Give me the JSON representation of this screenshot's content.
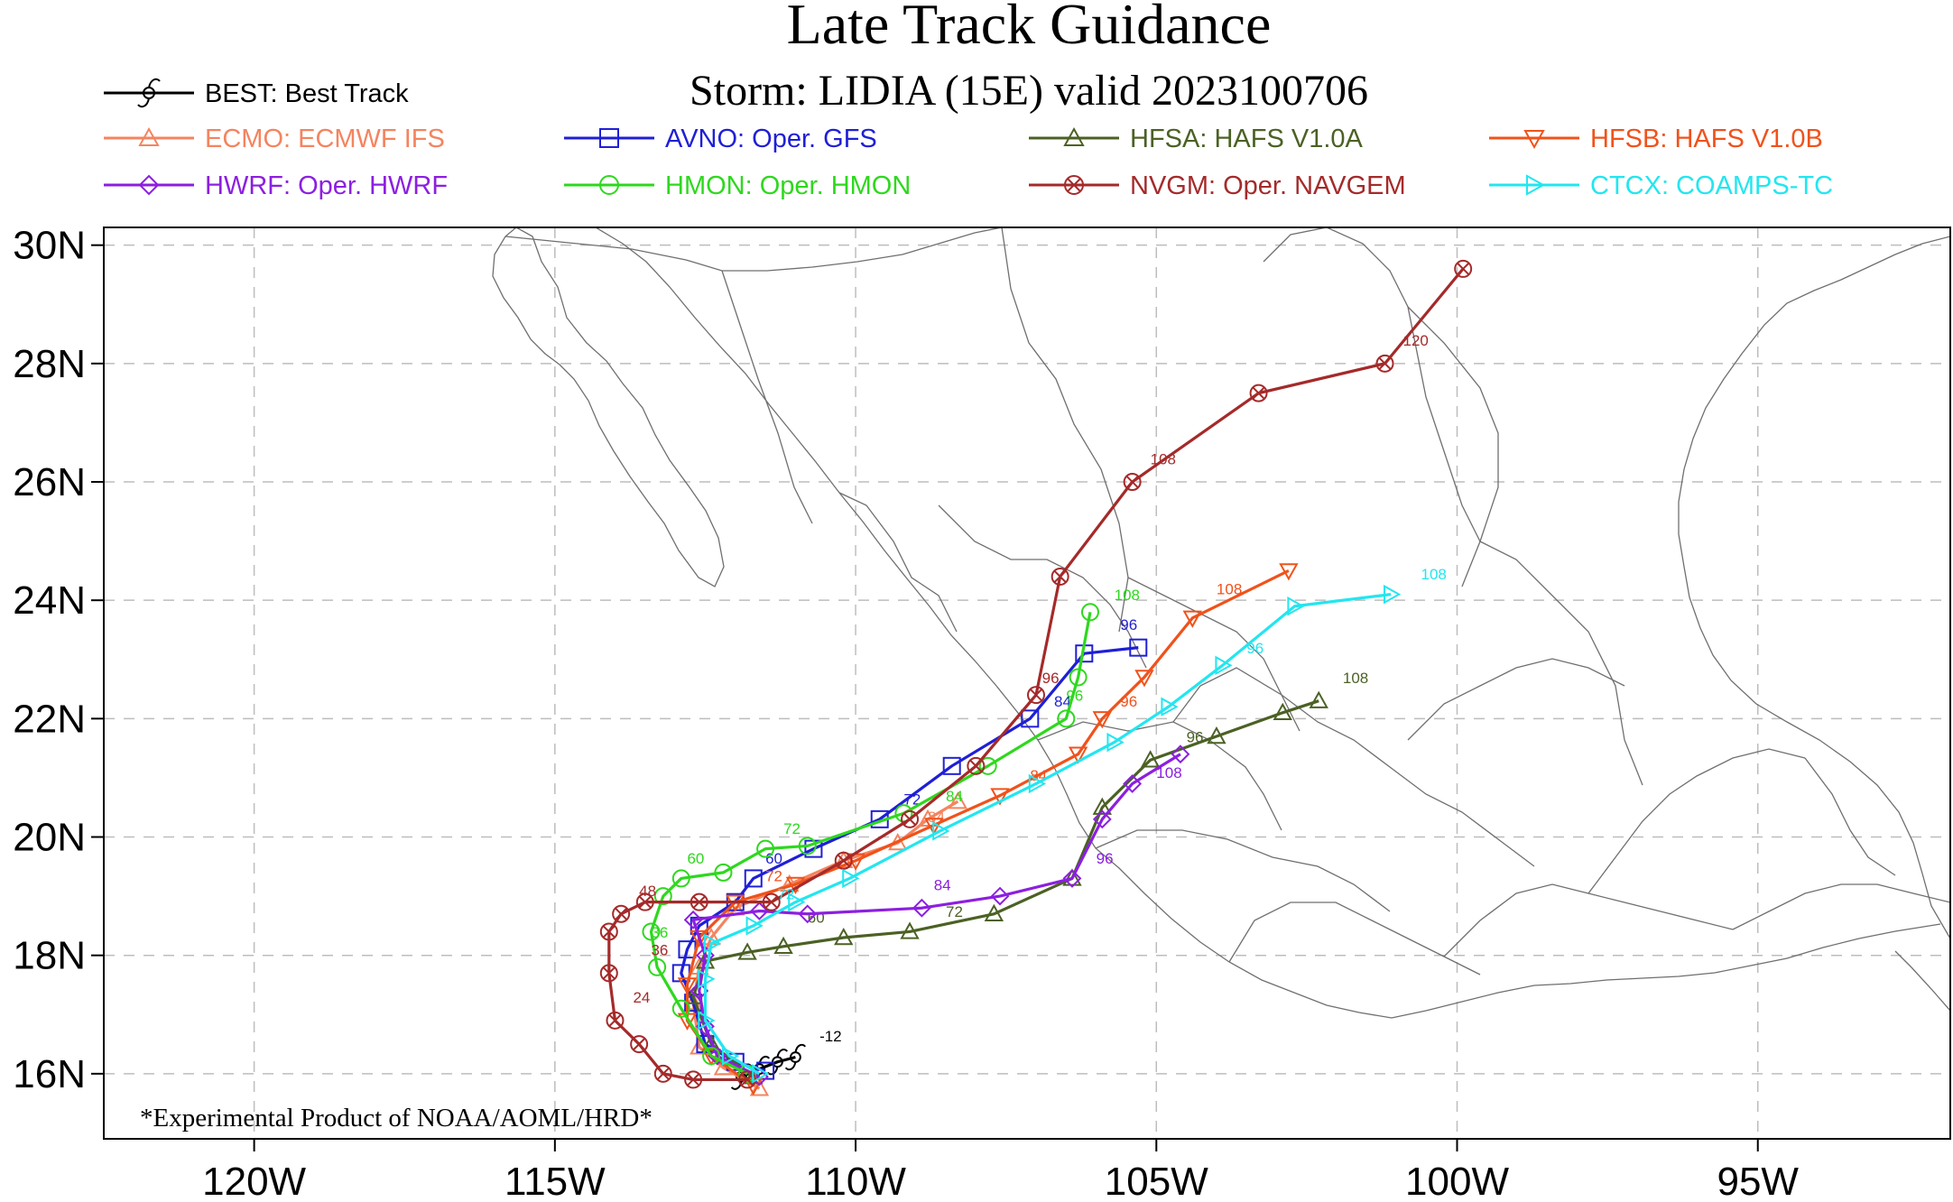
{
  "title": "Late Track Guidance",
  "subtitle": "Storm: LIDIA (15E) valid 2023100706",
  "footer": "*Experimental Product of NOAA/AOML/HRD*",
  "colors": {
    "grid": "#bdbdbd",
    "land": "#6f6f6f"
  },
  "chart_data": {
    "type": "line",
    "xlim": [
      -122.5,
      -91.8
    ],
    "ylim": [
      14.9,
      30.3
    ],
    "x_ticks": [
      {
        "value": -120,
        "label": "120W"
      },
      {
        "value": -115,
        "label": "115W"
      },
      {
        "value": -110,
        "label": "110W"
      },
      {
        "value": -105,
        "label": "105W"
      },
      {
        "value": -100,
        "label": "100W"
      },
      {
        "value": -95,
        "label": "95W"
      }
    ],
    "y_ticks": [
      {
        "value": 16,
        "label": "16N"
      },
      {
        "value": 18,
        "label": "18N"
      },
      {
        "value": 20,
        "label": "20N"
      },
      {
        "value": 22,
        "label": "22N"
      },
      {
        "value": 24,
        "label": "24N"
      },
      {
        "value": 26,
        "label": "26N"
      },
      {
        "value": 28,
        "label": "28N"
      },
      {
        "value": 30,
        "label": "30N"
      }
    ],
    "grid": true,
    "legend_placement": "top",
    "series": [
      {
        "name": "BEST: Best Track",
        "color": "#000000",
        "marker": "hurricane",
        "points": [
          [
            -111.0,
            16.28
          ],
          [
            -111.3,
            16.2
          ],
          [
            -111.6,
            16.08
          ],
          [
            -111.9,
            15.95
          ]
        ],
        "labels": [
          {
            "text": "-12",
            "x": -110.6,
            "y": 16.55
          }
        ]
      },
      {
        "name": "ECMO: ECMWF IFS",
        "color": "#f4845f",
        "marker": "triangle-up",
        "points": [
          [
            -111.6,
            15.75
          ],
          [
            -112.2,
            16.1
          ],
          [
            -112.6,
            16.45
          ],
          [
            -112.7,
            17.2
          ],
          [
            -112.6,
            17.8
          ],
          [
            -112.4,
            18.3
          ],
          [
            -112.0,
            18.8
          ],
          [
            -111.1,
            19.2
          ],
          [
            -110.2,
            19.6
          ],
          [
            -109.3,
            19.9
          ],
          [
            -108.8,
            20.3
          ],
          [
            -108.3,
            20.6
          ]
        ],
        "labels": [
          {
            "text": "84",
            "x": -108.8,
            "y": 20.25
          }
        ]
      },
      {
        "name": "AVNO: Oper. GFS",
        "color": "#1f1fd6",
        "marker": "square",
        "points": [
          [
            -111.5,
            16.05
          ],
          [
            -112.0,
            16.2
          ],
          [
            -112.5,
            16.5
          ],
          [
            -112.7,
            17.2
          ],
          [
            -112.9,
            17.7
          ],
          [
            -112.8,
            18.1
          ],
          [
            -112.6,
            18.5
          ],
          [
            -112.0,
            18.9
          ],
          [
            -111.7,
            19.3
          ],
          [
            -110.7,
            19.8
          ],
          [
            -109.6,
            20.3
          ],
          [
            -108.4,
            21.2
          ],
          [
            -107.1,
            22.0
          ],
          [
            -106.2,
            23.1
          ],
          [
            -105.3,
            23.2
          ]
        ],
        "labels": [
          {
            "text": "60",
            "x": -111.5,
            "y": 19.55
          },
          {
            "text": "72",
            "x": -109.2,
            "y": 20.55
          },
          {
            "text": "84",
            "x": -106.7,
            "y": 22.2
          },
          {
            "text": "96",
            "x": -105.6,
            "y": 23.5
          }
        ]
      },
      {
        "name": "HFSA: HAFS V1.0A",
        "color": "#4b6124",
        "marker": "triangle-up",
        "points": [
          [
            -111.7,
            15.95
          ],
          [
            -112.4,
            16.5
          ],
          [
            -112.7,
            17.3
          ],
          [
            -112.5,
            17.9
          ],
          [
            -111.8,
            18.05
          ],
          [
            -111.2,
            18.15
          ],
          [
            -110.2,
            18.3
          ],
          [
            -109.1,
            18.4
          ],
          [
            -107.7,
            18.7
          ],
          [
            -106.4,
            19.3
          ],
          [
            -105.9,
            20.5
          ],
          [
            -105.1,
            21.3
          ],
          [
            -104.0,
            21.7
          ],
          [
            -102.9,
            22.1
          ],
          [
            -102.3,
            22.3
          ]
        ],
        "labels": [
          {
            "text": "60",
            "x": -110.8,
            "y": 18.55
          },
          {
            "text": "72",
            "x": -108.5,
            "y": 18.65
          },
          {
            "text": "96",
            "x": -104.5,
            "y": 21.6
          },
          {
            "text": "108",
            "x": -101.9,
            "y": 22.6
          }
        ]
      },
      {
        "name": "HFSB: HAFS V1.0B",
        "color": "#f0521b",
        "marker": "triangle-down",
        "points": [
          [
            -111.7,
            15.8
          ],
          [
            -112.4,
            16.3
          ],
          [
            -112.8,
            16.9
          ],
          [
            -112.8,
            17.5
          ],
          [
            -112.6,
            18.3
          ],
          [
            -112.0,
            18.9
          ],
          [
            -111.0,
            19.2
          ],
          [
            -110.0,
            19.6
          ],
          [
            -108.7,
            20.2
          ],
          [
            -107.6,
            20.7
          ],
          [
            -106.3,
            21.4
          ],
          [
            -105.9,
            22.0
          ],
          [
            -105.2,
            22.7
          ],
          [
            -104.4,
            23.7
          ],
          [
            -102.8,
            24.5
          ]
        ],
        "labels": [
          {
            "text": "72",
            "x": -111.5,
            "y": 19.25
          },
          {
            "text": "84",
            "x": -107.1,
            "y": 20.95
          },
          {
            "text": "96",
            "x": -105.6,
            "y": 22.2
          },
          {
            "text": "108",
            "x": -104.0,
            "y": 24.1
          }
        ]
      },
      {
        "name": "HWRF: Oper. HWRF",
        "color": "#8c1fe0",
        "marker": "diamond",
        "points": [
          [
            -111.6,
            15.95
          ],
          [
            -112.3,
            16.3
          ],
          [
            -112.5,
            16.8
          ],
          [
            -112.6,
            17.4
          ],
          [
            -112.5,
            18.0
          ],
          [
            -112.7,
            18.6
          ],
          [
            -111.6,
            18.75
          ],
          [
            -110.8,
            18.7
          ],
          [
            -108.9,
            18.8
          ],
          [
            -107.6,
            19.0
          ],
          [
            -106.4,
            19.3
          ],
          [
            -105.9,
            20.3
          ],
          [
            -105.4,
            20.9
          ],
          [
            -104.6,
            21.4
          ]
        ],
        "labels": [
          {
            "text": "84",
            "x": -108.7,
            "y": 19.1
          },
          {
            "text": "96",
            "x": -106.0,
            "y": 19.55
          },
          {
            "text": "108",
            "x": -105.0,
            "y": 21.0
          }
        ]
      },
      {
        "name": "HMON: Oper. HMON",
        "color": "#2ed81e",
        "marker": "circle",
        "points": [
          [
            -111.8,
            16.0
          ],
          [
            -112.4,
            16.3
          ],
          [
            -112.9,
            17.1
          ],
          [
            -113.3,
            17.8
          ],
          [
            -113.4,
            18.4
          ],
          [
            -113.2,
            19.0
          ],
          [
            -112.9,
            19.3
          ],
          [
            -112.2,
            19.4
          ],
          [
            -111.5,
            19.8
          ],
          [
            -110.8,
            19.85
          ],
          [
            -109.2,
            20.4
          ],
          [
            -107.8,
            21.2
          ],
          [
            -106.5,
            22.0
          ],
          [
            -106.3,
            22.7
          ],
          [
            -106.1,
            23.8
          ]
        ],
        "labels": [
          {
            "text": "36",
            "x": -113.4,
            "y": 18.3
          },
          {
            "text": "60",
            "x": -112.8,
            "y": 19.55
          },
          {
            "text": "72",
            "x": -111.2,
            "y": 20.05
          },
          {
            "text": "84",
            "x": -108.5,
            "y": 20.6
          },
          {
            "text": "96",
            "x": -106.5,
            "y": 22.3
          },
          {
            "text": "108",
            "x": -105.7,
            "y": 24.0
          }
        ]
      },
      {
        "name": "NVGM: Oper. NAVGEM",
        "color": "#a52a2a",
        "marker": "circle-x",
        "points": [
          [
            -111.8,
            15.9
          ],
          [
            -112.7,
            15.9
          ],
          [
            -113.2,
            16.0
          ],
          [
            -113.6,
            16.5
          ],
          [
            -114.0,
            16.9
          ],
          [
            -114.1,
            17.7
          ],
          [
            -114.1,
            18.4
          ],
          [
            -113.9,
            18.7
          ],
          [
            -113.5,
            18.9
          ],
          [
            -112.6,
            18.9
          ],
          [
            -111.4,
            18.9
          ],
          [
            -110.2,
            19.6
          ],
          [
            -109.1,
            20.3
          ],
          [
            -108.0,
            21.2
          ],
          [
            -107.0,
            22.4
          ],
          [
            -106.6,
            24.4
          ],
          [
            -105.4,
            26.0
          ],
          [
            -103.3,
            27.5
          ],
          [
            -101.2,
            28.0
          ],
          [
            -99.9,
            29.6
          ]
        ],
        "labels": [
          {
            "text": "24",
            "x": -113.7,
            "y": 17.2
          },
          {
            "text": "36",
            "x": -113.4,
            "y": 18.0
          },
          {
            "text": "48",
            "x": -113.6,
            "y": 19.0
          },
          {
            "text": "96",
            "x": -106.9,
            "y": 22.6
          },
          {
            "text": "108",
            "x": -105.1,
            "y": 26.3
          },
          {
            "text": "120",
            "x": -100.9,
            "y": 28.3
          }
        ]
      },
      {
        "name": "CTCX: COAMPS-TC",
        "color": "#22e6f0",
        "marker": "triangle-right",
        "points": [
          [
            -111.6,
            16.0
          ],
          [
            -112.1,
            16.3
          ],
          [
            -112.5,
            16.9
          ],
          [
            -112.5,
            17.6
          ],
          [
            -112.4,
            18.2
          ],
          [
            -111.7,
            18.5
          ],
          [
            -111.0,
            18.9
          ],
          [
            -110.1,
            19.3
          ],
          [
            -108.6,
            20.1
          ],
          [
            -107.0,
            20.9
          ],
          [
            -105.7,
            21.6
          ],
          [
            -104.8,
            22.2
          ],
          [
            -103.9,
            22.9
          ],
          [
            -102.7,
            23.9
          ],
          [
            -101.1,
            24.1
          ]
        ],
        "labels": [
          {
            "text": "72",
            "x": -111.3,
            "y": 18.95
          },
          {
            "text": "96",
            "x": -103.5,
            "y": 23.1
          },
          {
            "text": "108",
            "x": -100.6,
            "y": 24.35
          }
        ]
      }
    ]
  }
}
